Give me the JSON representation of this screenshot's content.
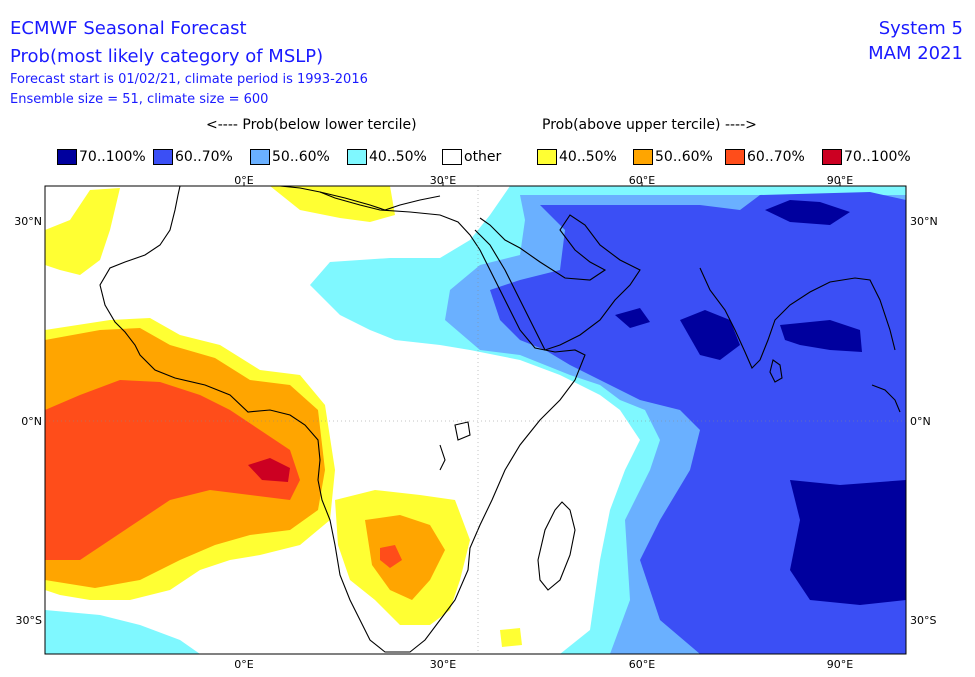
{
  "header": {
    "title": "ECMWF Seasonal Forecast",
    "subtitle": "Prob(most likely category of MSLP)",
    "forecast_info": "Forecast start is 01/02/21, climate period is 1993-2016",
    "ensemble_info": "Ensemble size = 51, climate size = 600",
    "system": "System 5",
    "season": "MAM 2021"
  },
  "legend": {
    "below_label": "<---- Prob(below lower tercile)",
    "above_label": "Prob(above upper tercile) ---->",
    "items": [
      {
        "label": "70..100%",
        "color": "#00009e"
      },
      {
        "label": "60..70%",
        "color": "#3b4ff5"
      },
      {
        "label": "50..60%",
        "color": "#6ab0ff"
      },
      {
        "label": "40..50%",
        "color": "#7ff8ff"
      },
      {
        "label": "other",
        "color": "#ffffff"
      },
      {
        "label": "40..50%",
        "color": "#ffff33"
      },
      {
        "label": "50..60%",
        "color": "#ffa500"
      },
      {
        "label": "60..70%",
        "color": "#ff4d1a"
      },
      {
        "label": "70..100%",
        "color": "#cc0022"
      }
    ]
  },
  "map": {
    "lon_range": [
      -30,
      100
    ],
    "lat_range": [
      -35,
      35
    ],
    "top_lon_ticks": [
      "0°E",
      "30°E",
      "60°E",
      "90°E"
    ],
    "bottom_lon_ticks": [
      "0°E",
      "30°E",
      "60°E",
      "90°E"
    ],
    "left_lat_ticks": [
      "30°N",
      "0°N",
      "30°S"
    ],
    "right_lat_ticks": [
      "30°N",
      "0°N",
      "30°S"
    ]
  }
}
